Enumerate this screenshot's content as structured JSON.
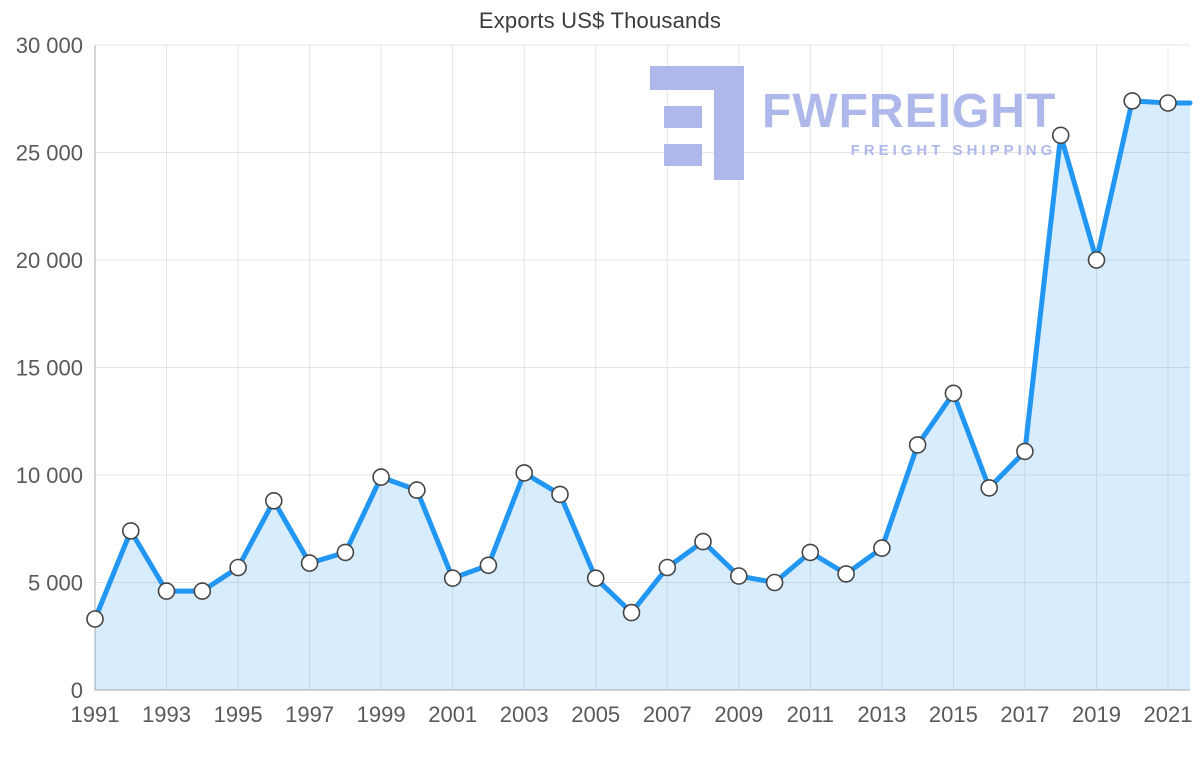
{
  "chart_data": {
    "type": "line",
    "title": "Exports US$ Thousands",
    "xlabel": "",
    "ylabel": "",
    "x": [
      1991,
      1992,
      1993,
      1994,
      1995,
      1996,
      1997,
      1998,
      1999,
      2000,
      2001,
      2002,
      2003,
      2004,
      2005,
      2006,
      2007,
      2008,
      2009,
      2010,
      2011,
      2012,
      2013,
      2014,
      2015,
      2016,
      2017,
      2018,
      2019,
      2020,
      2021
    ],
    "series": [
      {
        "name": "Exports US$ Thousands",
        "values": [
          3300,
          7400,
          4600,
          4600,
          5700,
          8800,
          5900,
          6400,
          9900,
          9300,
          5200,
          5800,
          10100,
          9100,
          5200,
          3600,
          5700,
          6900,
          5300,
          5000,
          6400,
          5400,
          6600,
          11400,
          13800,
          9400,
          11100,
          25800,
          20000,
          27400,
          27300
        ]
      }
    ],
    "ylim": [
      0,
      30000
    ],
    "yticks": [
      0,
      5000,
      10000,
      15000,
      20000,
      25000,
      30000
    ],
    "ytick_labels": [
      "0",
      "5 000",
      "10 000",
      "15 000",
      "20 000",
      "25 000",
      "30 000"
    ],
    "xtick_labels": [
      "1991",
      "1993",
      "1995",
      "1997",
      "1999",
      "2001",
      "2003",
      "2005",
      "2007",
      "2009",
      "2011",
      "2013",
      "2015",
      "2017",
      "2019",
      "2021"
    ],
    "grid": true,
    "legend": "none",
    "area_fill": true,
    "markers": true,
    "colors": {
      "line": "#2196f3",
      "fill": "#2196f3",
      "fill_opacity": "0.18",
      "marker_fill": "#ffffff",
      "marker_stroke": "#454545",
      "grid": "#e4e4e4",
      "axis": "#adadad",
      "label": "#595959",
      "title": "#3b3b3b"
    }
  },
  "watermark": {
    "brand": "FWFREIGHT",
    "tagline": "FREIGHT SHIPPING",
    "color": "#aeb8ea"
  }
}
